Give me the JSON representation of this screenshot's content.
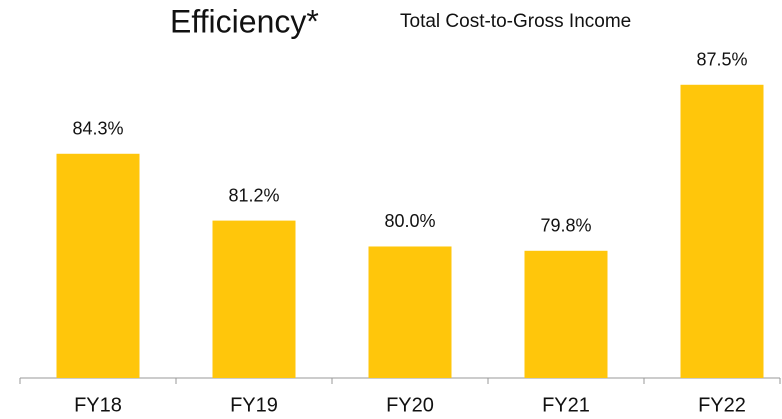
{
  "chart_data": {
    "type": "bar",
    "title": "Efficiency*",
    "subtitle": "Total Cost-to-Gross Income",
    "categories": [
      "FY18",
      "FY19",
      "FY20",
      "FY21",
      "FY22"
    ],
    "values": [
      84.3,
      81.2,
      80.0,
      79.8,
      87.5
    ],
    "value_labels": [
      "84.3%",
      "81.2%",
      "80.0%",
      "79.8%",
      "87.5%"
    ],
    "color": "#ffc60b",
    "ylim": [
      73.9,
      88
    ]
  }
}
